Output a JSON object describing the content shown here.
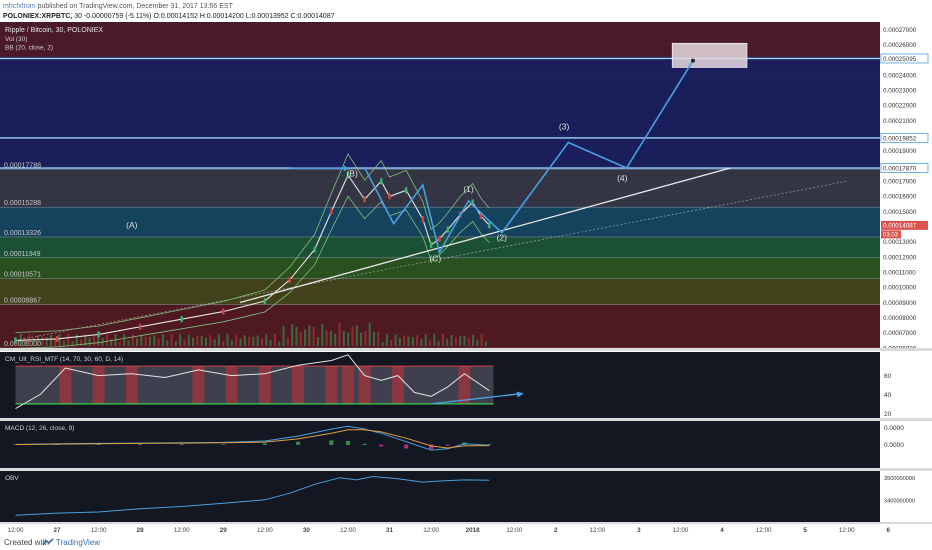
{
  "header": {
    "publisher": "mhcfxfrom",
    "published_text": "published on TradingView.com, December 31, 2017 13:56 EST",
    "symbol": "POLONIEX:XRPBTC",
    "interval": "30",
    "change": "-0.00000759 (-5.11%)",
    "ohlc": "O:0.00014152 H:0.00014200 L:0.00013952 C:0.00014087"
  },
  "footer": {
    "created_label": "Created with",
    "brand": "TradingView"
  },
  "chart_data": [
    {
      "type": "line",
      "title": "Ripple / Bitcoin, 30, POLONIEX",
      "legend_items": [
        "Vol (30)",
        "BB (20, close, 2)"
      ],
      "colors": {
        "background": "#131722",
        "price_line": "#e4e4e4",
        "projection": "#4a9fe0",
        "trendline": "#e8e8e8"
      },
      "ylim": [
        6e-05,
        0.000275
      ],
      "y_ticks": [
        "0.00027000",
        "0.00026000",
        "0.00025095",
        "0.00024000",
        "0.00023000",
        "0.00022000",
        "0.00021000",
        "0.00020000",
        "0.00019852",
        "0.00019000",
        "0.00018000",
        "0.00017870",
        "0.00017000",
        "0.00016000",
        "0.00015000",
        "0.00014087",
        "0.00013000",
        "0.00012000",
        "0.00011000",
        "0.00010000",
        "0.00009000",
        "0.00008000",
        "0.00007000",
        "0.00006000"
      ],
      "highlighted_ticks": [
        "0.00025095",
        "0.00019852",
        "0.00017870"
      ],
      "last_price_label": "0.00014087",
      "countdown_label": "03:03",
      "x_ticks": [
        "12:00",
        "27",
        "12:00",
        "28",
        "12:00",
        "29",
        "12:00",
        "30",
        "12:00",
        "31",
        "12:00",
        "2018",
        "12:00",
        "2",
        "12:00",
        "3",
        "12:00",
        "4",
        "12:00",
        "5",
        "12:00",
        "6"
      ],
      "fib_levels": [
        {
          "label": "0.00017788",
          "value": 0.00017788,
          "ratio": "1",
          "zone_color": "#3a3a4a"
        },
        {
          "label": "0.00015288",
          "value": 0.00015288,
          "ratio": "0.786",
          "zone_color": "#164a66"
        },
        {
          "label": "0.00013326",
          "value": 0.00013326,
          "ratio": "0.618",
          "zone_color": "#1f5a3a"
        },
        {
          "label": "0.00011949",
          "value": 0.00011949,
          "ratio": "0.5",
          "zone_color": "#2f5a1e"
        },
        {
          "label": "0.00010571",
          "value": 0.00010571,
          "ratio": "0.382",
          "zone_color": "#4a4a1a"
        },
        {
          "label": "0.00008867",
          "value": 8.867e-05,
          "ratio": "0.236",
          "zone_color": "#5a1a22"
        },
        {
          "label": "0.00006000",
          "value": 6e-05,
          "ratio": "0",
          "zone_color": "#5a1a22"
        }
      ],
      "wave_labels": [
        {
          "text": "(A)",
          "x": 27.4,
          "y": 0.000139
        },
        {
          "text": "(B)",
          "x": 30.05,
          "y": 0.000173
        },
        {
          "text": "(C)",
          "x": 31.05,
          "y": 0.000117
        },
        {
          "text": "(1)",
          "x": 31.45,
          "y": 0.000163
        },
        {
          "text": "(2)",
          "x": 31.85,
          "y": 0.000131
        },
        {
          "text": "(3)",
          "x": 32.6,
          "y": 0.000204
        },
        {
          "text": "(4)",
          "x": 33.3,
          "y": 0.00017
        }
      ],
      "price_series": {
        "x": [
          26.0,
          26.5,
          27.0,
          27.5,
          28.0,
          28.5,
          29.0,
          29.3,
          29.6,
          29.8,
          30.0,
          30.2,
          30.4,
          30.5,
          30.7,
          30.9,
          31.0,
          31.1,
          31.2,
          31.35,
          31.5,
          31.6,
          31.7
        ],
        "y": [
          6.5e-05,
          6.6e-05,
          6.9e-05,
          7.4e-05,
          7.9e-05,
          8.4e-05,
          9.1e-05,
          0.000105,
          0.000125,
          0.00015,
          0.000174,
          0.000158,
          0.00017,
          0.00016,
          0.000164,
          0.000145,
          0.000128,
          0.000132,
          0.000138,
          0.000148,
          0.000156,
          0.000147,
          0.0001409
        ]
      },
      "projection_path": {
        "x": [
          31.85,
          32.65,
          33.35,
          34.15
        ],
        "y": [
          0.000136,
          0.0001955,
          0.0001787,
          0.0002495
        ]
      },
      "target_zone": {
        "x0": 33.9,
        "x1": 34.8,
        "y0": 0.000245,
        "y1": 0.000261
      },
      "trendline": {
        "x": [
          28.7,
          34.6
        ],
        "y": [
          9e-05,
          0.0001787
        ]
      },
      "trendline_extended": {
        "x": [
          26.0,
          36.0
        ],
        "y": [
          6.5e-05,
          0.00017
        ]
      }
    },
    {
      "type": "area",
      "title": "CM_Ult_RSI_MTF (14, 70, 30, 60, D, 14)",
      "y_ticks": [
        "60",
        "40",
        "20"
      ],
      "ylim": [
        15,
        85
      ],
      "bands": [
        70,
        30
      ],
      "x": [
        26.0,
        26.3,
        26.6,
        27.0,
        27.4,
        27.8,
        28.2,
        28.6,
        29.0,
        29.4,
        29.8,
        30.0,
        30.2,
        30.4,
        30.6,
        30.8,
        31.0,
        31.2,
        31.4,
        31.6,
        31.7
      ],
      "values": [
        25,
        40,
        68,
        60,
        62,
        58,
        66,
        60,
        62,
        71,
        76,
        82,
        60,
        55,
        60,
        42,
        38,
        48,
        62,
        50,
        44
      ],
      "arrow": {
        "x": [
          31.0,
          32.1
        ],
        "y": [
          30,
          41
        ]
      }
    },
    {
      "type": "line",
      "title": "MACD (12, 26, close, 9)",
      "y_ticks": [
        "0.0000",
        "0.0000"
      ],
      "x": [
        26.0,
        26.5,
        27.0,
        27.5,
        28.0,
        28.5,
        29.0,
        29.4,
        29.8,
        30.0,
        30.2,
        30.4,
        30.7,
        31.0,
        31.2,
        31.4,
        31.7
      ],
      "values": [
        0,
        0.1,
        0.15,
        0.2,
        0.25,
        0.3,
        0.5,
        1.2,
        2.2,
        2.6,
        2.2,
        1.6,
        0.4,
        -0.8,
        -0.6,
        0.1,
        -0.1
      ],
      "signal": [
        0,
        0.05,
        0.1,
        0.15,
        0.2,
        0.25,
        0.35,
        0.8,
        1.6,
        2.1,
        2.1,
        1.8,
        0.9,
        -0.2,
        -0.5,
        -0.2,
        -0.15
      ]
    },
    {
      "type": "line",
      "title": "OBV",
      "y_ticks": [
        "3500000000",
        "3400000000"
      ],
      "x": [
        26.0,
        26.5,
        27.0,
        27.5,
        28.0,
        28.5,
        29.0,
        29.3,
        29.6,
        29.9,
        30.1,
        30.3,
        30.6,
        30.9,
        31.1,
        31.4,
        31.7
      ],
      "values": [
        3.33,
        3.34,
        3.345,
        3.36,
        3.37,
        3.385,
        3.4,
        3.43,
        3.47,
        3.5,
        3.49,
        3.505,
        3.495,
        3.48,
        3.485,
        3.49,
        3.488
      ]
    }
  ]
}
